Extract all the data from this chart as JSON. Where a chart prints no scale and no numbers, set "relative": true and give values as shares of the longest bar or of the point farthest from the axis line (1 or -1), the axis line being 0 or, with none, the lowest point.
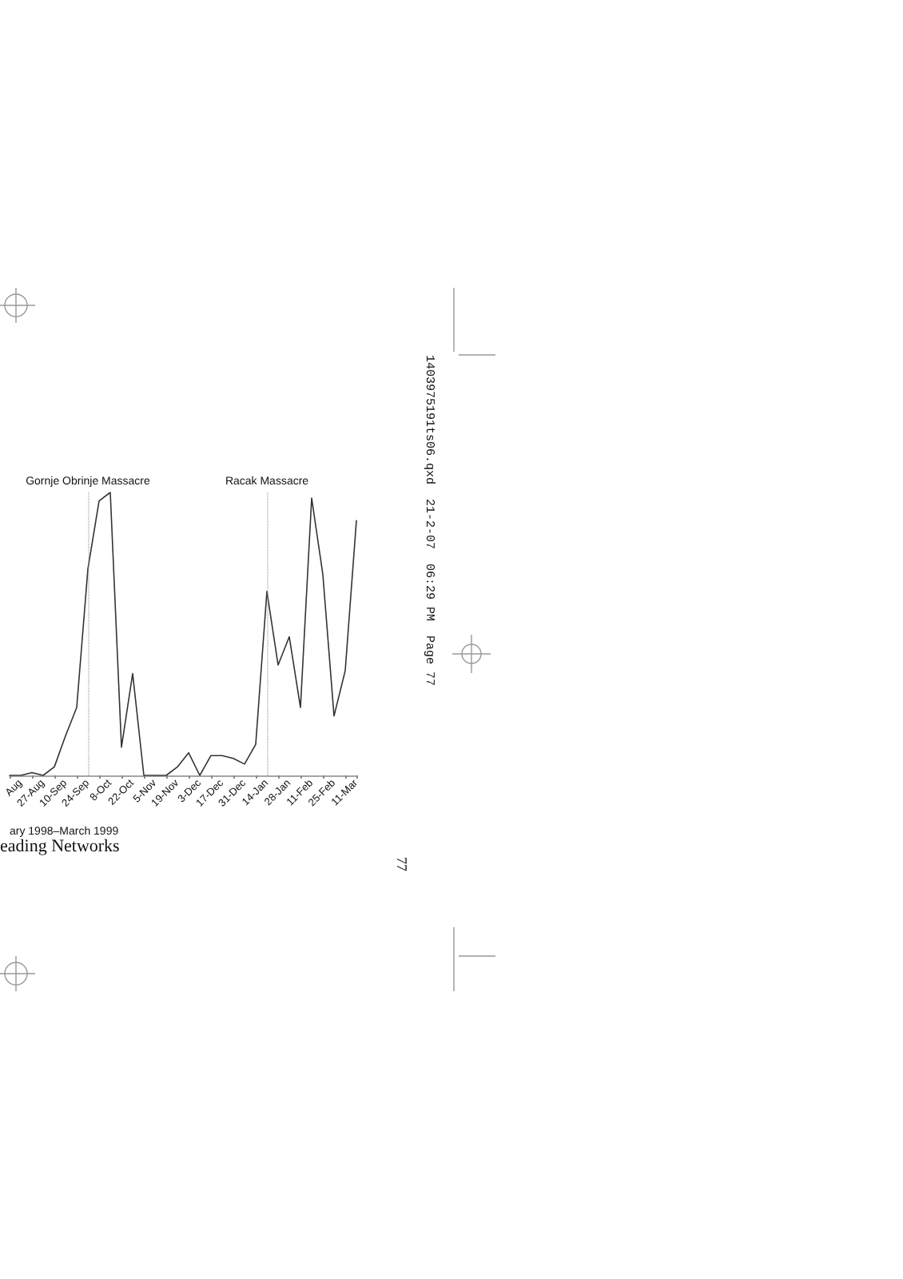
{
  "chart_data": {
    "type": "line",
    "relative": true,
    "xlabel": "ary 1998–March 1999",
    "categories": [
      null,
      "Aug",
      null,
      "27-Aug",
      null,
      "10-Sep",
      null,
      "24-Sep",
      null,
      "8-Oct",
      null,
      "22-Oct",
      null,
      "5-Nov",
      null,
      "19-Nov",
      null,
      "3-Dec",
      null,
      "17-Dec",
      null,
      "31-Dec",
      null,
      "14-Jan",
      null,
      "28-Jan",
      null,
      "11-Feb",
      null,
      "25-Feb",
      null,
      "11-Mar"
    ],
    "series": [
      {
        "color": "#333333",
        "values": [
          0,
          0,
          0.01,
          0,
          0.03,
          0.14,
          0.24,
          0.73,
          0.97,
          1,
          0.1,
          0.36,
          0,
          0,
          0,
          0.03,
          0.08,
          0,
          0.07,
          0.07,
          0.06,
          0.04,
          0.11,
          0.65,
          0.39,
          0.49,
          0.24,
          0.98,
          0.71,
          0.21,
          0.37,
          0.9
        ]
      }
    ],
    "ref_lines": [
      {
        "axis": "x",
        "value": "24-Sep",
        "label": "Gornje Obrinje Massacre",
        "line_style": "dotted"
      },
      {
        "axis": "x",
        "value": "14-Jan",
        "label": "Racak Massacre",
        "line_style": "dotted"
      }
    ],
    "annotations": [
      "eading Networks",
      "1403975191ts06.qxd  21-2-07  06:29 PM  Page 77",
      "77"
    ],
    "marker": "none",
    "line_style": "solid",
    "grid": false
  }
}
